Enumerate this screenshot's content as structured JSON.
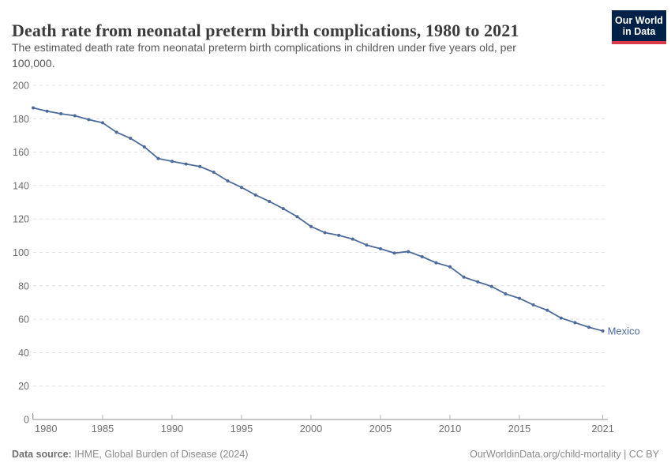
{
  "header": {
    "title": "Death rate from neonatal preterm birth complications, 1980 to 2021",
    "subtitle_line1": "The estimated death rate from neonatal preterm birth complications in children under five years old, per",
    "subtitle_line2": "100,000."
  },
  "logo": {
    "line1": "Our World",
    "line2": "in Data",
    "bg_color": "#002147",
    "accent_color": "#D93B4B"
  },
  "chart_data": {
    "type": "line",
    "title": "Death rate from neonatal preterm birth complications, 1980 to 2021",
    "xlabel": "",
    "ylabel": "",
    "xlim": [
      1980,
      2021
    ],
    "ylim": [
      0,
      200
    ],
    "x_ticks": [
      1980,
      1985,
      1990,
      1995,
      2000,
      2005,
      2010,
      2015,
      2021
    ],
    "y_ticks": [
      0,
      20,
      40,
      60,
      80,
      100,
      120,
      140,
      160,
      180,
      200
    ],
    "grid": "horizontal-dashed",
    "legend_position": "end-of-line-label",
    "colors": {
      "line": "#4C6A9C",
      "grid": "#dedede",
      "axis": "#8c8c8c",
      "tick": "#b5b5b5",
      "tick_label": "#6e6e6e"
    },
    "series": [
      {
        "name": "Mexico",
        "color": "#4C6A9C",
        "x": [
          1980,
          1981,
          1982,
          1983,
          1984,
          1985,
          1986,
          1987,
          1988,
          1989,
          1990,
          1991,
          1992,
          1993,
          1994,
          1995,
          1996,
          1997,
          1998,
          1999,
          2000,
          2001,
          2002,
          2003,
          2004,
          2005,
          2006,
          2007,
          2008,
          2009,
          2010,
          2011,
          2012,
          2013,
          2014,
          2015,
          2016,
          2017,
          2018,
          2019,
          2020,
          2021
        ],
        "values": [
          186.5,
          184.5,
          183.0,
          181.8,
          179.5,
          177.6,
          171.9,
          168.3,
          163.2,
          156.2,
          154.5,
          152.9,
          151.4,
          148.0,
          142.8,
          138.9,
          134.4,
          130.5,
          126.2,
          121.4,
          115.5,
          111.8,
          110.2,
          108.0,
          104.4,
          102.2,
          99.6,
          100.5,
          97.4,
          93.8,
          91.4,
          85.2,
          82.4,
          79.6,
          75.2,
          72.5,
          68.6,
          65.4,
          60.7,
          58.0,
          55.2,
          53.0
        ]
      }
    ]
  },
  "footer": {
    "source_label": "Data source:",
    "source_text": " IHME, Global Burden of Disease (2024)",
    "credit": "OurWorldinData.org/child-mortality | CC BY"
  }
}
